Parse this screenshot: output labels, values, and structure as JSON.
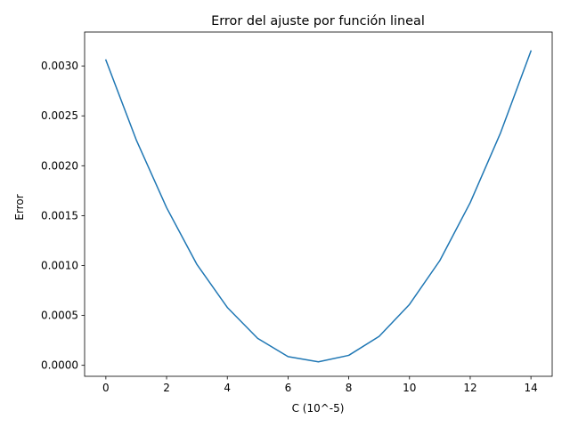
{
  "chart_data": {
    "type": "line",
    "title": "Error del ajuste por función lineal",
    "xlabel": "C (10^-5)",
    "ylabel": "Error",
    "xlim": [
      -0.7,
      14.7
    ],
    "ylim": [
      -0.00011,
      0.00334
    ],
    "xticks": [
      0,
      2,
      4,
      6,
      8,
      10,
      12,
      14
    ],
    "yticks": [
      0.0,
      0.0005,
      0.001,
      0.0015,
      0.002,
      0.0025,
      0.003
    ],
    "ytick_labels": [
      "0.0000",
      "0.0005",
      "0.0010",
      "0.0015",
      "0.0020",
      "0.0025",
      "0.0030"
    ],
    "grid": false,
    "series": [
      {
        "color": "#1f77b4",
        "x": [
          0,
          1,
          2,
          3,
          4,
          5,
          6,
          7,
          8,
          9,
          10,
          11,
          12,
          13,
          14
        ],
        "y": [
          0.00306,
          0.00226,
          0.00158,
          0.00101,
          0.00058,
          0.00027,
          8.7e-05,
          3.5e-05,
          0.0001,
          0.00029,
          0.00061,
          0.00105,
          0.00163,
          0.00233,
          0.00315
        ]
      }
    ]
  }
}
